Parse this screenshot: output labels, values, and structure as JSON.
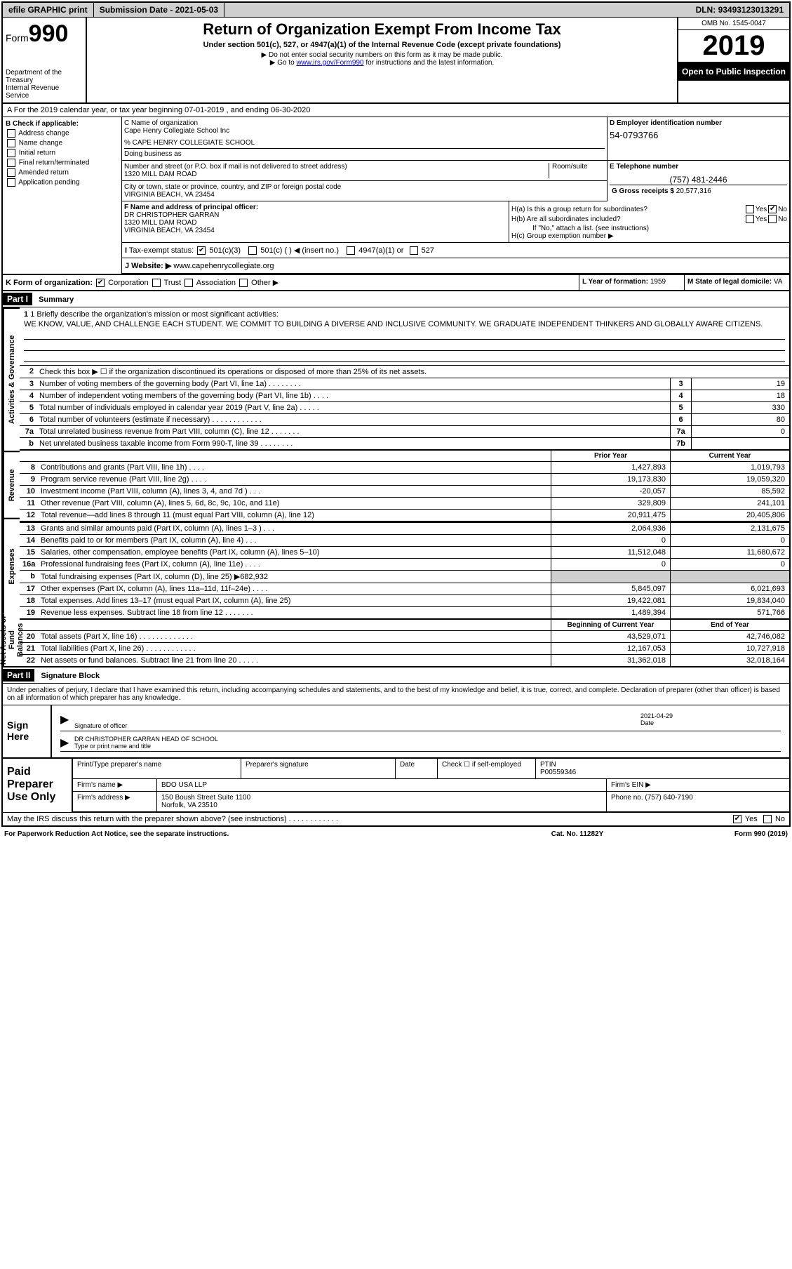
{
  "topbar": {
    "efile": "efile GRAPHIC print",
    "subdate_label": "Submission Date - ",
    "subdate": "2021-05-03",
    "dln_label": "DLN: ",
    "dln": "93493123013291"
  },
  "header": {
    "form_prefix": "Form",
    "form_num": "990",
    "dept": "Department of the Treasury\nInternal Revenue Service",
    "title": "Return of Organization Exempt From Income Tax",
    "sub1": "Under section 501(c), 527, or 4947(a)(1) of the Internal Revenue Code (except private foundations)",
    "sub2": "▶ Do not enter social security numbers on this form as it may be made public.",
    "sub3_a": "▶ Go to ",
    "sub3_link": "www.irs.gov/Form990",
    "sub3_b": " for instructions and the latest information.",
    "omb": "OMB No. 1545-0047",
    "year": "2019",
    "inspect": "Open to Public Inspection"
  },
  "rowA": "A For the 2019 calendar year, or tax year beginning 07-01-2019   , and ending 06-30-2020",
  "colB": {
    "label": "B Check if applicable:",
    "opts": [
      "Address change",
      "Name change",
      "Initial return",
      "Final return/terminated",
      "Amended return",
      "Application pending"
    ]
  },
  "name": {
    "label_c": "C Name of organization",
    "org": "Cape Henry Collegiate School Inc",
    "care_prefix": "% ",
    "care": "CAPE HENRY COLLEGIATE SCHOOL",
    "dba_label": "Doing business as",
    "ein_label": "D Employer identification number",
    "ein": "54-0793766",
    "addr_label": "Number and street (or P.O. box if mail is not delivered to street address)",
    "suite_label": "Room/suite",
    "addr": "1320 MILL DAM ROAD",
    "city_label": "City or town, state or province, country, and ZIP or foreign postal code",
    "city": "VIRGINIA BEACH, VA  23454",
    "tel_label": "E Telephone number",
    "tel": "(757) 481-2446",
    "gross_label": "G Gross receipts $ ",
    "gross": "20,577,316"
  },
  "F": {
    "label": "F  Name and address of principal officer:",
    "name": "DR CHRISTOPHER GARRAN",
    "addr1": "1320 MILL DAM ROAD",
    "addr2": "VIRGINIA BEACH, VA  23454"
  },
  "H": {
    "a": "H(a)  Is this a group return for subordinates?",
    "b": "H(b)  Are all subordinates included?",
    "note": "If \"No,\" attach a list. (see instructions)",
    "c": "H(c)  Group exemption number ▶",
    "yes": "Yes",
    "no": "No"
  },
  "I": {
    "label": "Tax-exempt status:",
    "o1": "501(c)(3)",
    "o2": "501(c) (   ) ◀ (insert no.)",
    "o3": "4947(a)(1) or",
    "o4": "527"
  },
  "J": {
    "label": "J Website: ▶ ",
    "val": "www.capehenrycollegiate.org"
  },
  "K": {
    "label": "K Form of organization:",
    "o1": "Corporation",
    "o2": "Trust",
    "o3": "Association",
    "o4": "Other ▶",
    "L_label": "L Year of formation: ",
    "L_val": "1959",
    "M_label": "M State of legal domicile: ",
    "M_val": "VA"
  },
  "part1": {
    "header": "Part I",
    "title": "Summary",
    "sides": {
      "ag": "Activities & Governance",
      "rev": "Revenue",
      "exp": "Expenses",
      "net": "Net Assets or Fund Balances"
    },
    "mission_label": "1  Briefly describe the organization's mission or most significant activities:",
    "mission": "WE KNOW, VALUE, AND CHALLENGE EACH STUDENT. WE COMMIT TO BUILDING A DIVERSE AND INCLUSIVE COMMUNITY. WE GRADUATE INDEPENDENT THINKERS AND GLOBALLY AWARE CITIZENS.",
    "line2": "Check this box ▶ ☐  if the organization discontinued its operations or disposed of more than 25% of its net assets.",
    "lines_ag": [
      {
        "n": "3",
        "d": "Number of voting members of the governing body (Part VI, line 1a)   .    .    .    .    .    .    .    .",
        "box": "3",
        "v": "19"
      },
      {
        "n": "4",
        "d": "Number of independent voting members of the governing body (Part VI, line 1b)   .    .    .    .",
        "box": "4",
        "v": "18"
      },
      {
        "n": "5",
        "d": "Total number of individuals employed in calendar year 2019 (Part V, line 2a)   .    .    .    .    .",
        "box": "5",
        "v": "330"
      },
      {
        "n": "6",
        "d": "Total number of volunteers (estimate if necessary)    .    .    .    .    .    .    .    .    .    .    .    .",
        "box": "6",
        "v": "80"
      },
      {
        "n": "7a",
        "d": "Total unrelated business revenue from Part VIII, column (C), line 12   .    .    .    .    .    .    .",
        "box": "7a",
        "v": "0"
      },
      {
        "n": "b",
        "d": "Net unrelated business taxable income from Form 990-T, line 39    .    .    .    .    .    .    .    .",
        "box": "7b",
        "v": ""
      }
    ],
    "col_prior": "Prior Year",
    "col_current": "Current Year",
    "rev": [
      {
        "n": "8",
        "d": "Contributions and grants (Part VIII, line 1h)    .    .    .    .",
        "p": "1,427,893",
        "c": "1,019,793"
      },
      {
        "n": "9",
        "d": "Program service revenue (Part VIII, line 2g)    .    .    .    .",
        "p": "19,173,830",
        "c": "19,059,320"
      },
      {
        "n": "10",
        "d": "Investment income (Part VIII, column (A), lines 3, 4, and 7d )    .    .    .",
        "p": "-20,057",
        "c": "85,592"
      },
      {
        "n": "11",
        "d": "Other revenue (Part VIII, column (A), lines 5, 6d, 8c, 9c, 10c, and 11e)",
        "p": "329,809",
        "c": "241,101"
      },
      {
        "n": "12",
        "d": "Total revenue—add lines 8 through 11 (must equal Part VIII, column (A), line 12)",
        "p": "20,911,475",
        "c": "20,405,806"
      }
    ],
    "exp": [
      {
        "n": "13",
        "d": "Grants and similar amounts paid (Part IX, column (A), lines 1–3 )   .    .    .",
        "p": "2,064,936",
        "c": "2,131,675"
      },
      {
        "n": "14",
        "d": "Benefits paid to or for members (Part IX, column (A), line 4)    .    .    .",
        "p": "0",
        "c": "0"
      },
      {
        "n": "15",
        "d": "Salaries, other compensation, employee benefits (Part IX, column (A), lines 5–10)",
        "p": "11,512,048",
        "c": "11,680,672"
      },
      {
        "n": "16a",
        "d": "Professional fundraising fees (Part IX, column (A), line 11e)    .    .    .    .",
        "p": "0",
        "c": "0"
      },
      {
        "n": "b",
        "d": "Total fundraising expenses (Part IX, column (D), line 25) ▶682,932",
        "p": "",
        "c": "",
        "shaded": true
      },
      {
        "n": "17",
        "d": "Other expenses (Part IX, column (A), lines 11a–11d, 11f–24e)    .    .    .    .",
        "p": "5,845,097",
        "c": "6,021,693"
      },
      {
        "n": "18",
        "d": "Total expenses. Add lines 13–17 (must equal Part IX, column (A), line 25)",
        "p": "19,422,081",
        "c": "19,834,040"
      },
      {
        "n": "19",
        "d": "Revenue less expenses. Subtract line 18 from line 12   .    .    .    .    .    .    .",
        "p": "1,489,394",
        "c": "571,766"
      }
    ],
    "col_begin": "Beginning of Current Year",
    "col_end": "End of Year",
    "net": [
      {
        "n": "20",
        "d": "Total assets (Part X, line 16)   .    .    .    .    .    .    .    .    .    .    .    .    .",
        "p": "43,529,071",
        "c": "42,746,082"
      },
      {
        "n": "21",
        "d": "Total liabilities (Part X, line 26)    .    .    .    .    .    .    .    .    .    .    .    .",
        "p": "12,167,053",
        "c": "10,727,918"
      },
      {
        "n": "22",
        "d": "Net assets or fund balances. Subtract line 21 from line 20    .    .    .    .    .",
        "p": "31,362,018",
        "c": "32,018,164"
      }
    ]
  },
  "part2": {
    "header": "Part II",
    "title": "Signature Block",
    "text": "Under penalties of perjury, I declare that I have examined this return, including accompanying schedules and statements, and to the best of my knowledge and belief, it is true, correct, and complete. Declaration of preparer (other than officer) is based on all information of which preparer has any knowledge.",
    "sign_here": "Sign Here",
    "sig_officer_label": "Signature of officer",
    "sig_date_label": "Date",
    "sig_date": "2021-04-29",
    "sig_name": "DR CHRISTOPHER GARRAN  HEAD OF SCHOOL",
    "sig_name_label": "Type or print name and title",
    "paid_label": "Paid Preparer Use Only",
    "pg_name_label": "Print/Type preparer's name",
    "pg_sig_label": "Preparer's signature",
    "pg_date_label": "Date",
    "pg_check_label": "Check ☐ if self-employed",
    "pg_ptin_label": "PTIN",
    "pg_ptin": "P00559346",
    "firm_name_label": "Firm's name    ▶",
    "firm_name": "BDO USA LLP",
    "firm_ein_label": "Firm's EIN ▶",
    "firm_addr_label": "Firm's address ▶",
    "firm_addr1": "150 Boush Street Suite 1100",
    "firm_addr2": "Norfolk, VA  23510",
    "firm_phone_label": "Phone no. ",
    "firm_phone": "(757) 640-7190",
    "discuss": "May the IRS discuss this return with the preparer shown above? (see instructions)    .    .    .    .    .    .    .    .    .    .    .    .",
    "yes": "Yes",
    "no": "No"
  },
  "footer": {
    "left": "For Paperwork Reduction Act Notice, see the separate instructions.",
    "mid": "Cat. No. 11282Y",
    "right": "Form 990 (2019)"
  }
}
